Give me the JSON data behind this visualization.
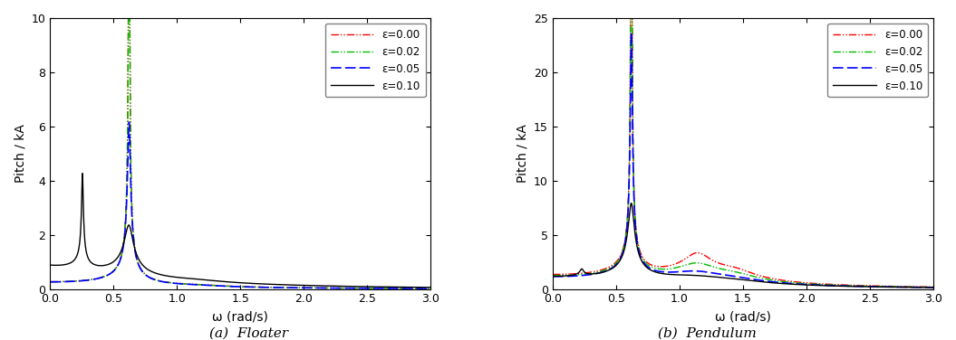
{
  "floater": {
    "ylim": [
      0,
      10
    ],
    "yticks": [
      0,
      2,
      4,
      6,
      8,
      10
    ],
    "xlim": [
      0,
      3
    ],
    "xticks": [
      0,
      0.5,
      1,
      1.5,
      2,
      2.5,
      3
    ],
    "xlabel": "ω (rad/s)",
    "ylabel": "Pitch / kA",
    "caption": "(a)  Floater"
  },
  "pendulum": {
    "ylim": [
      0,
      25
    ],
    "yticks": [
      0,
      5,
      10,
      15,
      20,
      25
    ],
    "xlim": [
      0,
      3
    ],
    "xticks": [
      0,
      0.5,
      1,
      1.5,
      2,
      2.5,
      3
    ],
    "xlabel": "ω (rad/s)",
    "ylabel": "Pitch / kA",
    "caption": "(b)  Pendulum"
  },
  "epsilons": [
    0.0,
    0.02,
    0.05,
    0.1
  ],
  "colors": [
    "#ff0000",
    "#00bb00",
    "#0000ff",
    "#000000"
  ],
  "legend_labels": [
    "ε=0.00",
    "ε=0.02",
    "ε=0.05",
    "ε=0.10"
  ],
  "fig_width": 10.55,
  "fig_height": 3.76
}
